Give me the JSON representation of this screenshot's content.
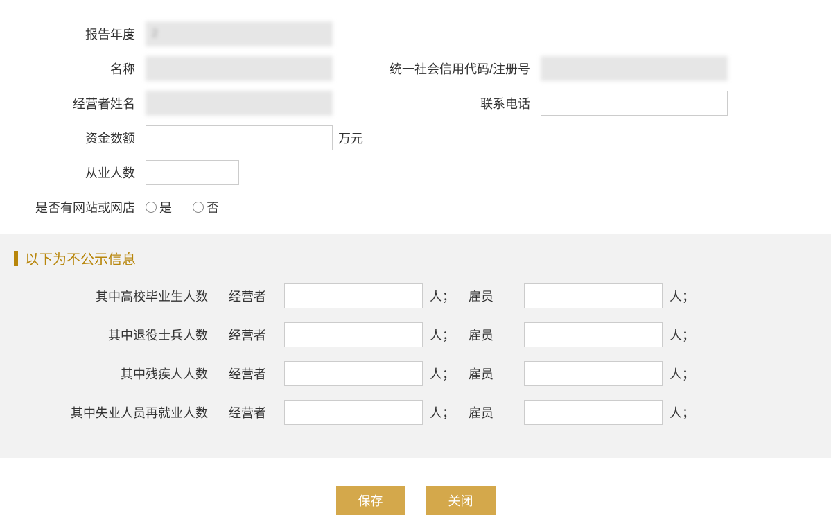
{
  "form": {
    "report_year": {
      "label": "报告年度",
      "value": "2"
    },
    "name": {
      "label": "名称",
      "value": ""
    },
    "credit_code": {
      "label": "统一社会信用代码/注册号",
      "value": ""
    },
    "operator_name": {
      "label": "经营者姓名",
      "value": ""
    },
    "phone": {
      "label": "联系电话",
      "value": ""
    },
    "capital": {
      "label": "资金数额",
      "value": "",
      "unit": "万元"
    },
    "employee_count": {
      "label": "从业人数",
      "value": ""
    },
    "has_website": {
      "label": "是否有网站或网店",
      "yes": "是",
      "no": "否"
    }
  },
  "private_section": {
    "title": "以下为不公示信息",
    "rows": [
      {
        "label": "其中高校毕业生人数",
        "op_label": "经营者",
        "emp_label": "雇员",
        "op_val": "",
        "emp_val": "",
        "unit": "人；"
      },
      {
        "label": "其中退役士兵人数",
        "op_label": "经营者",
        "emp_label": "雇员",
        "op_val": "",
        "emp_val": "",
        "unit": "人；"
      },
      {
        "label": "其中残疾人人数",
        "op_label": "经营者",
        "emp_label": "雇员",
        "op_val": "",
        "emp_val": "",
        "unit": "人；"
      },
      {
        "label": "其中失业人员再就业人数",
        "op_label": "经营者",
        "emp_label": "雇员",
        "op_val": "",
        "emp_val": "",
        "unit": "人；"
      }
    ]
  },
  "buttons": {
    "save": "保存",
    "close": "关闭"
  },
  "colors": {
    "accent": "#b8860b",
    "button_bg": "#d4a84b",
    "section_bg": "#f2f2f2",
    "readonly_bg": "#e6e6e6",
    "border": "#cccccc",
    "text": "#333333"
  }
}
